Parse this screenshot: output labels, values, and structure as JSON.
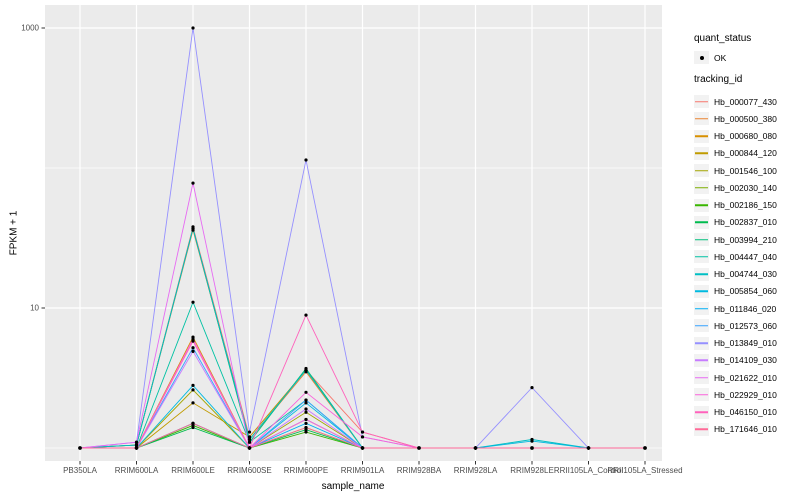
{
  "chart_data": {
    "type": "line",
    "xlabel": "sample_name",
    "ylabel": "FPKM + 1",
    "y_scale": "log10",
    "ylim": [
      0.85,
      1100
    ],
    "grid": true,
    "panel_bg": "#EBEBEB",
    "grid_color": "#FFFFFF",
    "point_color": "#000000",
    "legend_position": "right",
    "y_ticks": [
      {
        "label": "1000",
        "value": 1000
      },
      {
        "label": "10",
        "value": 10
      }
    ],
    "y_gridline_values": [
      1,
      10,
      100,
      1000
    ],
    "categories": [
      "PB350LA",
      "RRIM600LA",
      "RRIM600LE",
      "RRIM600SE",
      "RRIM600PE",
      "RRIM901LA",
      "RRIM928BA",
      "RRIM928LA",
      "RRIM928LE",
      "RRII105LA_Control",
      "RRII105LA_Stressed"
    ],
    "series": [
      {
        "name": "Hb_000077_430",
        "color": "#F8766D",
        "values": [
          1,
          1.05,
          38,
          1.2,
          3.6,
          1.3,
          1,
          1,
          1,
          1,
          1
        ]
      },
      {
        "name": "Hb_000500_380",
        "color": "#EA8331",
        "values": [
          1,
          1.05,
          36,
          1.15,
          3.5,
          1,
          1,
          1,
          1,
          1,
          1
        ]
      },
      {
        "name": "Hb_000680_080",
        "color": "#D89000",
        "values": [
          1,
          1,
          6.2,
          1,
          1.6,
          1,
          1,
          1,
          1,
          1,
          1
        ]
      },
      {
        "name": "Hb_000844_120",
        "color": "#C09B00",
        "values": [
          1,
          1,
          2.1,
          1.2,
          3.6,
          1,
          1,
          1,
          1,
          1,
          1
        ]
      },
      {
        "name": "Hb_001546_100",
        "color": "#A3A500",
        "values": [
          1,
          1,
          2.6,
          1,
          1.8,
          1,
          1,
          1,
          1,
          1,
          1
        ]
      },
      {
        "name": "Hb_002030_140",
        "color": "#7CAE00",
        "values": [
          1,
          1,
          1.5,
          1,
          1.4,
          1,
          1,
          1,
          1,
          1,
          1
        ]
      },
      {
        "name": "Hb_002186_150",
        "color": "#39B600",
        "values": [
          1,
          1,
          1.45,
          1,
          1.3,
          1,
          1,
          1,
          1,
          1,
          1
        ]
      },
      {
        "name": "Hb_002837_010",
        "color": "#00BB4E",
        "values": [
          1,
          1,
          1.4,
          1,
          1.35,
          1,
          1,
          1,
          1,
          1,
          1
        ]
      },
      {
        "name": "Hb_003994_210",
        "color": "#00BF7D",
        "values": [
          1,
          1.05,
          37,
          1.1,
          3.7,
          1,
          1,
          1,
          1,
          1,
          1
        ]
      },
      {
        "name": "Hb_004447_040",
        "color": "#00C1A3",
        "values": [
          1,
          1,
          11,
          1.1,
          2.2,
          1,
          1,
          1,
          1,
          1,
          1
        ]
      },
      {
        "name": "Hb_004744_030",
        "color": "#00BFC4",
        "values": [
          1,
          1.05,
          37,
          1.15,
          3.6,
          1,
          1,
          1,
          1.15,
          1,
          1
        ]
      },
      {
        "name": "Hb_005854_060",
        "color": "#00BAE0",
        "values": [
          1,
          1,
          2.8,
          1,
          2.1,
          1,
          1,
          1,
          1.12,
          1,
          1
        ]
      },
      {
        "name": "Hb_011846_020",
        "color": "#00B0F6",
        "values": [
          1,
          1,
          1.5,
          1,
          1.5,
          1,
          1,
          1,
          1,
          1,
          1
        ]
      },
      {
        "name": "Hb_012573_060",
        "color": "#35A2FF",
        "values": [
          1,
          1,
          5.2,
          1,
          2.2,
          1,
          1,
          1,
          1,
          1,
          1
        ]
      },
      {
        "name": "Hb_013849_010",
        "color": "#9590FF",
        "values": [
          1,
          1.1,
          1000,
          1.3,
          114,
          1.2,
          1,
          1,
          2.7,
          1,
          1
        ]
      },
      {
        "name": "Hb_014109_030",
        "color": "#C77CFF",
        "values": [
          1,
          1,
          4.9,
          1,
          1.9,
          1,
          1,
          1,
          1,
          1,
          1
        ]
      },
      {
        "name": "Hb_021622_010",
        "color": "#E76BF3",
        "values": [
          1,
          1.1,
          78,
          1,
          1.6,
          1,
          1,
          1,
          1,
          1,
          1
        ]
      },
      {
        "name": "Hb_022929_010",
        "color": "#FA62DB",
        "values": [
          1,
          1,
          6.0,
          1,
          2.5,
          1.2,
          1,
          1,
          1,
          1,
          1
        ]
      },
      {
        "name": "Hb_046150_010",
        "color": "#FF62BC",
        "values": [
          1,
          1,
          5.8,
          1,
          8.9,
          1.3,
          1,
          1,
          1,
          1,
          1
        ]
      },
      {
        "name": "Hb_171646_010",
        "color": "#FF6A98",
        "values": [
          1,
          1,
          1.5,
          1,
          1.4,
          1,
          1,
          1,
          1,
          1,
          1
        ]
      }
    ]
  },
  "legend": {
    "quant_title": "quant_status",
    "quant_items": [
      {
        "label": "OK",
        "marker": "point"
      }
    ],
    "tracking_title": "tracking_id"
  }
}
